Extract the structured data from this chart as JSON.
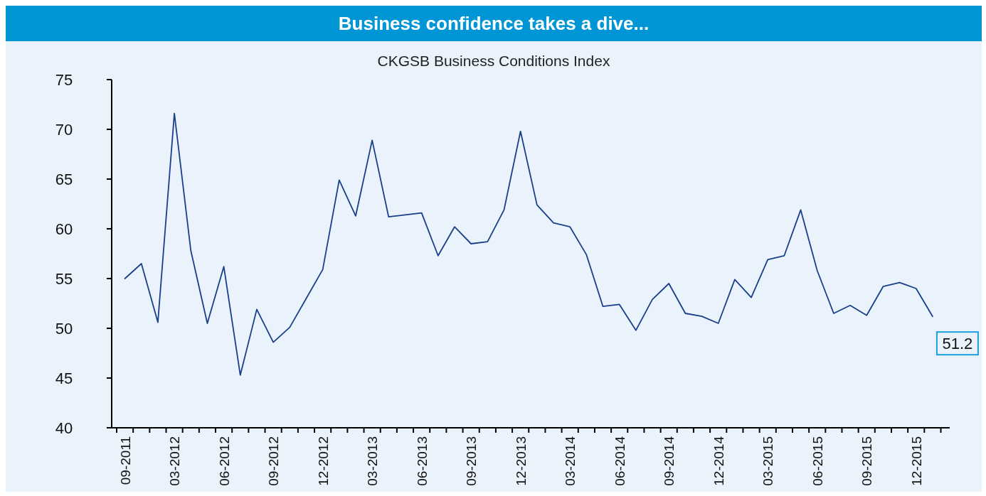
{
  "chart_data": {
    "type": "line",
    "title": "Business confidence takes a dive...",
    "subtitle": "CKGSB Business Conditions Index",
    "categories": [
      "09-2011",
      null,
      null,
      "03-2012",
      null,
      null,
      "06-2012",
      null,
      null,
      "09-2012",
      null,
      null,
      "12-2012",
      null,
      null,
      "03-2013",
      null,
      null,
      "06-2013",
      null,
      null,
      "09-2013",
      null,
      null,
      "12-2013",
      null,
      null,
      "03-2014",
      null,
      null,
      "06-2014",
      null,
      null,
      "09-2014",
      null,
      null,
      "12-2014",
      null,
      null,
      "03-2015",
      null,
      null,
      "06-2015",
      null,
      null,
      "09-2015",
      null,
      null,
      "12-2015",
      null
    ],
    "series": [
      {
        "color": "#1a3f8a",
        "values": [
          55.0,
          56.5,
          50.6,
          71.6,
          57.8,
          50.5,
          56.2,
          45.3,
          51.9,
          48.6,
          50.1,
          53.0,
          55.9,
          64.9,
          61.3,
          68.9,
          61.2,
          61.4,
          61.6,
          57.3,
          60.2,
          58.5,
          58.7,
          61.9,
          69.8,
          62.4,
          60.6,
          60.2,
          57.4,
          52.2,
          52.4,
          49.8,
          52.9,
          54.5,
          51.5,
          51.2,
          50.5,
          54.9,
          53.1,
          56.9,
          57.3,
          61.9,
          55.8,
          51.5,
          52.3,
          51.3,
          54.2,
          54.6,
          54.0,
          51.2
        ]
      }
    ],
    "ylim": [
      40,
      75
    ],
    "yticks": [
      40,
      45,
      50,
      55,
      60,
      65,
      70,
      75
    ],
    "annotations": [
      "51.2"
    ]
  }
}
